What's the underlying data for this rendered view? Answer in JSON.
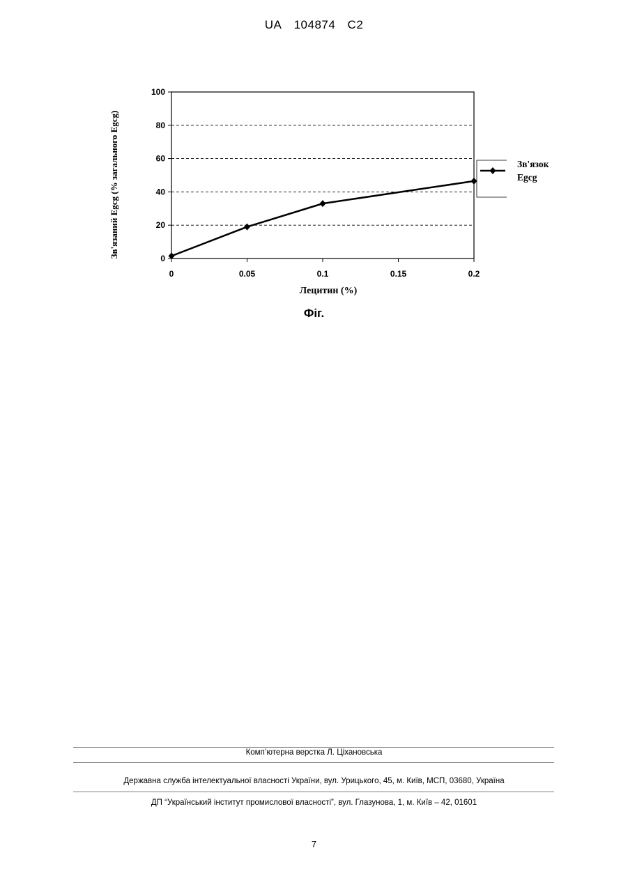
{
  "header": {
    "country": "UA",
    "number": "104874",
    "kind": "C2"
  },
  "figure": {
    "caption": "Фіг."
  },
  "chart_data": {
    "type": "line",
    "xlabel": "Лецитин (%)",
    "ylabel": "Зв'язаний Egcg (% загального Egcg)",
    "x": [
      0,
      0.05,
      0.1,
      0.2
    ],
    "series": [
      {
        "name": "Зв'язок Egcg",
        "values": [
          1.5,
          19,
          33,
          46.5
        ],
        "color": "#000000",
        "marker": "diamond"
      }
    ],
    "xlim": [
      0,
      0.2
    ],
    "ylim": [
      0,
      100
    ],
    "xticks": [
      "0",
      "0.05",
      "0.1",
      "0.15",
      "0.2"
    ],
    "xtick_values": [
      0,
      0.05,
      0.1,
      0.15,
      0.2
    ],
    "yticks": [
      "0",
      "20",
      "40",
      "60",
      "80",
      "100"
    ],
    "ytick_values": [
      0,
      20,
      40,
      60,
      80,
      100
    ],
    "grid": "horizontal-dashed",
    "legend": {
      "position": "right",
      "lines": [
        "Зв'язок",
        "Egcg"
      ]
    }
  },
  "footer": {
    "layout": "Комп’ютерна верстка Л. Ціхановська",
    "office": "Державна служба інтелектуальної власності України, вул. Урицького, 45, м. Київ, МСП, 03680, Україна",
    "institute": "ДП “Український інститут промислової власності”, вул. Глазунова, 1, м. Київ – 42, 01601"
  },
  "page_number": "7"
}
